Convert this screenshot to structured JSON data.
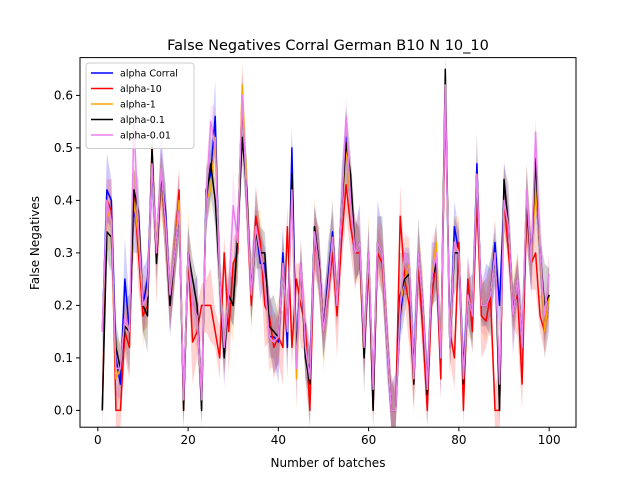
{
  "chart_data": {
    "type": "line",
    "title": "False Negatives Corral German B10 N 10_10",
    "xlabel": "Number of batches",
    "ylabel": "False Negatives",
    "xlim": [
      -3.95,
      105.95
    ],
    "ylim": [
      -0.032,
      0.672
    ],
    "xticks": [
      0,
      20,
      40,
      60,
      80,
      100
    ],
    "yticks": [
      0.0,
      0.1,
      0.2,
      0.3,
      0.4,
      0.5,
      0.6
    ],
    "xtick_labels": [
      "0",
      "20",
      "40",
      "60",
      "80",
      "100"
    ],
    "ytick_labels": [
      "0.0",
      "0.1",
      "0.2",
      "0.3",
      "0.4",
      "0.5",
      "0.6"
    ],
    "grid": false,
    "legend_position": "top-left",
    "x": [
      1,
      2,
      3,
      4,
      5,
      6,
      7,
      8,
      9,
      10,
      11,
      12,
      13,
      14,
      15,
      16,
      17,
      18,
      19,
      20,
      21,
      22,
      23,
      24,
      25,
      26,
      27,
      28,
      29,
      30,
      31,
      32,
      33,
      34,
      35,
      36,
      37,
      38,
      39,
      40,
      41,
      42,
      43,
      44,
      45,
      46,
      47,
      48,
      49,
      50,
      51,
      52,
      53,
      54,
      55,
      56,
      57,
      58,
      59,
      60,
      61,
      62,
      63,
      64,
      65,
      66,
      67,
      68,
      69,
      70,
      71,
      72,
      73,
      74,
      75,
      76,
      77,
      78,
      79,
      80,
      81,
      82,
      83,
      84,
      85,
      86,
      87,
      88,
      89,
      90,
      91,
      92,
      93,
      94,
      95,
      96,
      97,
      98,
      99,
      100
    ],
    "series": [
      {
        "name": "alpha Corral",
        "color": "#0000ff",
        "values": [
          0.15,
          0.42,
          0.4,
          0.1,
          0.05,
          0.25,
          0.15,
          0.38,
          0.35,
          0.2,
          0.25,
          0.46,
          0.3,
          0.45,
          0.38,
          0.22,
          0.3,
          0.38,
          0.02,
          0.3,
          0.2,
          0.18,
          0.02,
          0.42,
          0.45,
          0.56,
          0.25,
          0.12,
          0.22,
          0.2,
          0.33,
          0.6,
          0.4,
          0.22,
          0.35,
          0.28,
          0.28,
          0.14,
          0.14,
          0.13,
          0.3,
          0.12,
          0.5,
          0.1,
          0.28,
          0.1,
          0.08,
          0.35,
          0.28,
          0.15,
          0.25,
          0.34,
          0.2,
          0.38,
          0.52,
          0.42,
          0.3,
          0.32,
          0.12,
          0.3,
          0.05,
          0.32,
          0.3,
          0.15,
          0.0,
          0.0,
          0.18,
          0.25,
          0.28,
          0.08,
          0.3,
          0.2,
          0.05,
          0.25,
          0.28,
          0.1,
          0.6,
          0.12,
          0.35,
          0.3,
          0.08,
          0.22,
          0.18,
          0.47,
          0.2,
          0.2,
          0.22,
          0.32,
          0.2,
          0.4,
          0.35,
          0.18,
          0.25,
          0.12,
          0.4,
          0.3,
          0.42,
          0.3,
          0.15,
          0.22
        ]
      },
      {
        "name": "alpha-10",
        "color": "#ff0000",
        "values": [
          0.0,
          0.4,
          0.38,
          0.0,
          0.0,
          0.15,
          0.12,
          0.42,
          0.3,
          0.18,
          0.2,
          0.5,
          0.28,
          0.44,
          0.35,
          0.2,
          0.3,
          0.42,
          0.0,
          0.3,
          0.13,
          0.15,
          0.2,
          0.2,
          0.2,
          0.15,
          0.1,
          0.3,
          0.15,
          0.28,
          0.3,
          0.6,
          0.4,
          0.2,
          0.37,
          0.32,
          0.2,
          0.18,
          0.12,
          0.14,
          0.12,
          0.35,
          0.12,
          0.25,
          0.2,
          0.16,
          0.0,
          0.32,
          0.28,
          0.15,
          0.22,
          0.3,
          0.18,
          0.32,
          0.43,
          0.35,
          0.3,
          0.3,
          0.1,
          0.28,
          0.0,
          0.3,
          0.28,
          0.15,
          0.0,
          0.0,
          0.37,
          0.25,
          0.2,
          0.05,
          0.28,
          0.15,
          0.0,
          0.22,
          0.28,
          0.06,
          0.6,
          0.15,
          0.1,
          0.32,
          0.0,
          0.25,
          0.15,
          0.4,
          0.18,
          0.17,
          0.22,
          0.0,
          0.0,
          0.4,
          0.3,
          0.2,
          0.22,
          0.05,
          0.38,
          0.28,
          0.3,
          0.18,
          0.15,
          0.22
        ]
      },
      {
        "name": "alpha-1",
        "color": "#ffa500",
        "values": [
          0.15,
          0.38,
          0.36,
          0.06,
          0.08,
          0.18,
          0.15,
          0.4,
          0.33,
          0.2,
          0.22,
          0.48,
          0.3,
          0.44,
          0.36,
          0.22,
          0.3,
          0.4,
          0.01,
          0.3,
          0.2,
          0.18,
          0.02,
          0.4,
          0.42,
          0.52,
          0.25,
          0.12,
          0.22,
          0.2,
          0.32,
          0.62,
          0.42,
          0.22,
          0.35,
          0.3,
          0.25,
          0.14,
          0.13,
          0.14,
          0.28,
          0.15,
          0.42,
          0.06,
          0.28,
          0.12,
          0.06,
          0.34,
          0.27,
          0.15,
          0.23,
          0.33,
          0.2,
          0.38,
          0.5,
          0.4,
          0.3,
          0.32,
          0.12,
          0.3,
          0.04,
          0.32,
          0.3,
          0.15,
          0.0,
          0.0,
          0.2,
          0.25,
          0.28,
          0.06,
          0.3,
          0.2,
          0.04,
          0.25,
          0.32,
          0.1,
          0.63,
          0.12,
          0.32,
          0.3,
          0.06,
          0.22,
          0.18,
          0.45,
          0.2,
          0.2,
          0.22,
          0.3,
          0.05,
          0.4,
          0.35,
          0.18,
          0.25,
          0.12,
          0.42,
          0.28,
          0.42,
          0.3,
          0.15,
          0.22
        ]
      },
      {
        "name": "alpha-0.1",
        "color": "#000000",
        "values": [
          0.0,
          0.34,
          0.33,
          0.12,
          0.08,
          0.16,
          0.15,
          0.42,
          0.38,
          0.2,
          0.18,
          0.5,
          0.28,
          0.45,
          0.36,
          0.2,
          0.3,
          0.38,
          0.0,
          0.3,
          0.25,
          0.2,
          0.0,
          0.4,
          0.47,
          0.4,
          0.25,
          0.1,
          0.22,
          0.2,
          0.33,
          0.52,
          0.42,
          0.22,
          0.34,
          0.3,
          0.3,
          0.16,
          0.15,
          0.14,
          0.28,
          0.15,
          0.45,
          0.1,
          0.28,
          0.1,
          0.05,
          0.35,
          0.28,
          0.15,
          0.24,
          0.33,
          0.2,
          0.38,
          0.51,
          0.45,
          0.3,
          0.32,
          0.1,
          0.3,
          0.0,
          0.32,
          0.3,
          0.15,
          0.0,
          0.0,
          0.22,
          0.25,
          0.26,
          0.05,
          0.3,
          0.2,
          0.03,
          0.25,
          0.28,
          0.1,
          0.65,
          0.12,
          0.3,
          0.3,
          0.05,
          0.22,
          0.18,
          0.44,
          0.2,
          0.2,
          0.22,
          0.3,
          0.0,
          0.44,
          0.35,
          0.18,
          0.25,
          0.12,
          0.4,
          0.28,
          0.48,
          0.3,
          0.2,
          0.22
        ]
      },
      {
        "name": "alpha-0.01",
        "color": "#ee82ee",
        "values": [
          0.15,
          0.4,
          0.36,
          0.08,
          0.08,
          0.18,
          0.15,
          0.55,
          0.35,
          0.2,
          0.22,
          0.47,
          0.3,
          0.46,
          0.36,
          0.22,
          0.3,
          0.38,
          0.02,
          0.3,
          0.2,
          0.18,
          0.02,
          0.4,
          0.55,
          0.5,
          0.25,
          0.12,
          0.22,
          0.39,
          0.32,
          0.6,
          0.4,
          0.22,
          0.35,
          0.3,
          0.25,
          0.14,
          0.13,
          0.14,
          0.28,
          0.15,
          0.42,
          0.08,
          0.28,
          0.12,
          0.06,
          0.34,
          0.27,
          0.15,
          0.23,
          0.33,
          0.2,
          0.38,
          0.56,
          0.4,
          0.3,
          0.32,
          0.12,
          0.3,
          0.04,
          0.32,
          0.3,
          0.15,
          0.0,
          0.0,
          0.2,
          0.3,
          0.28,
          0.06,
          0.3,
          0.2,
          0.04,
          0.25,
          0.3,
          0.1,
          0.62,
          0.12,
          0.32,
          0.3,
          0.06,
          0.22,
          0.18,
          0.45,
          0.2,
          0.2,
          0.22,
          0.3,
          0.05,
          0.4,
          0.35,
          0.18,
          0.25,
          0.12,
          0.42,
          0.28,
          0.53,
          0.3,
          0.18,
          0.26
        ]
      }
    ]
  }
}
